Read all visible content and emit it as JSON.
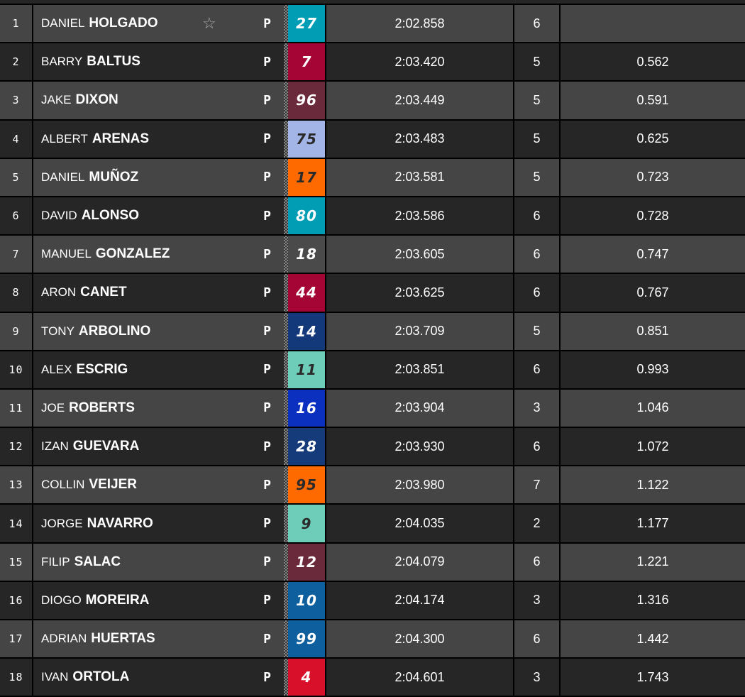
{
  "riders": [
    {
      "pos": "1",
      "first": "DANIEL",
      "last": "HOLGADO",
      "favorite": true,
      "tyre": "P",
      "number": "27",
      "color": "#009db5",
      "text": "#ffffff",
      "time": "2:02.858",
      "laps": "6",
      "gap": ""
    },
    {
      "pos": "2",
      "first": "BARRY",
      "last": "BALTUS",
      "tyre": "P",
      "number": "7",
      "color": "#a50535",
      "text": "#ffffff",
      "time": "2:03.420",
      "laps": "5",
      "gap": "0.562"
    },
    {
      "pos": "3",
      "first": "JAKE",
      "last": "DIXON",
      "tyre": "P",
      "number": "96",
      "color": "#6b2a3c",
      "text": "#ffffff",
      "time": "2:03.449",
      "laps": "5",
      "gap": "0.591"
    },
    {
      "pos": "4",
      "first": "ALBERT",
      "last": "ARENAS",
      "tyre": "P",
      "number": "75",
      "color": "#a3b5e6",
      "text": "#2a2a2a",
      "time": "2:03.483",
      "laps": "5",
      "gap": "0.625"
    },
    {
      "pos": "5",
      "first": "DANIEL",
      "last": "MUÑOZ",
      "tyre": "P",
      "number": "17",
      "color": "#ff6a00",
      "text": "#2a2a2a",
      "time": "2:03.581",
      "laps": "5",
      "gap": "0.723"
    },
    {
      "pos": "6",
      "first": "DAVID",
      "last": "ALONSO",
      "tyre": "P",
      "number": "80",
      "color": "#009db5",
      "text": "#ffffff",
      "time": "2:03.586",
      "laps": "6",
      "gap": "0.728"
    },
    {
      "pos": "7",
      "first": "MANUEL",
      "last": "GONZALEZ",
      "tyre": "P",
      "number": "18",
      "color": "#4a4a4a",
      "text": "#ffffff",
      "time": "2:03.605",
      "laps": "6",
      "gap": "0.747"
    },
    {
      "pos": "8",
      "first": "ARON",
      "last": "CANET",
      "tyre": "P",
      "number": "44",
      "color": "#a50535",
      "text": "#ffffff",
      "time": "2:03.625",
      "laps": "6",
      "gap": "0.767"
    },
    {
      "pos": "9",
      "first": "TONY",
      "last": "ARBOLINO",
      "tyre": "P",
      "number": "14",
      "color": "#13397a",
      "text": "#ffffff",
      "time": "2:03.709",
      "laps": "5",
      "gap": "0.851"
    },
    {
      "pos": "10",
      "first": "ALEX",
      "last": "ESCRIG",
      "tyre": "P",
      "number": "11",
      "color": "#6dcdb8",
      "text": "#2a2a2a",
      "time": "2:03.851",
      "laps": "6",
      "gap": "0.993"
    },
    {
      "pos": "11",
      "first": "JOE",
      "last": "ROBERTS",
      "tyre": "P",
      "number": "16",
      "color": "#0b2fbe",
      "text": "#ffffff",
      "time": "2:03.904",
      "laps": "3",
      "gap": "1.046"
    },
    {
      "pos": "12",
      "first": "IZAN",
      "last": "GUEVARA",
      "tyre": "P",
      "number": "28",
      "color": "#153b7a",
      "text": "#ffffff",
      "time": "2:03.930",
      "laps": "6",
      "gap": "1.072"
    },
    {
      "pos": "13",
      "first": "COLLIN",
      "last": "VEIJER",
      "tyre": "P",
      "number": "95",
      "color": "#ff6a00",
      "text": "#2a2a2a",
      "time": "2:03.980",
      "laps": "7",
      "gap": "1.122"
    },
    {
      "pos": "14",
      "first": "JORGE",
      "last": "NAVARRO",
      "tyre": "P",
      "number": "9",
      "color": "#6dcdb8",
      "text": "#2a2a2a",
      "time": "2:04.035",
      "laps": "2",
      "gap": "1.177"
    },
    {
      "pos": "15",
      "first": "FILIP",
      "last": "SALAC",
      "tyre": "P",
      "number": "12",
      "color": "#6b2a3c",
      "text": "#ffffff",
      "time": "2:04.079",
      "laps": "6",
      "gap": "1.221"
    },
    {
      "pos": "16",
      "first": "DIOGO",
      "last": "MOREIRA",
      "tyre": "P",
      "number": "10",
      "color": "#0d5f9e",
      "text": "#ffffff",
      "time": "2:04.174",
      "laps": "3",
      "gap": "1.316"
    },
    {
      "pos": "17",
      "first": "ADRIAN",
      "last": "HUERTAS",
      "tyre": "P",
      "number": "99",
      "color": "#0d5f9e",
      "text": "#ffffff",
      "time": "2:04.300",
      "laps": "6",
      "gap": "1.442"
    },
    {
      "pos": "18",
      "first": "IVAN",
      "last": "ORTOLA",
      "tyre": "P",
      "number": "4",
      "color": "#d8102a",
      "text": "#ffffff",
      "time": "2:04.601",
      "laps": "3",
      "gap": "1.743"
    }
  ]
}
